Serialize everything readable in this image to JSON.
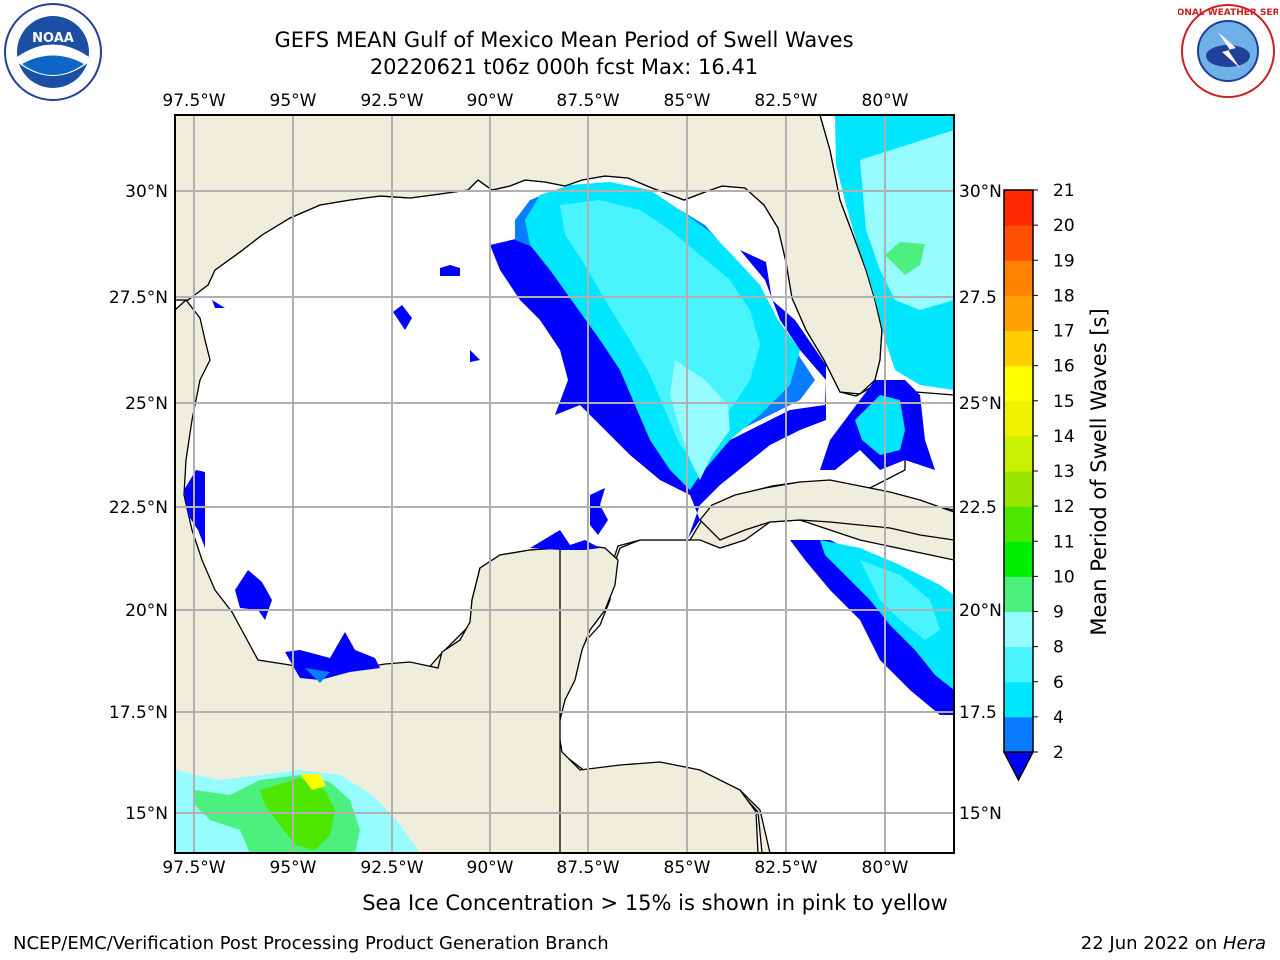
{
  "title_line1": "GEFS MEAN Gulf of Mexico Mean Period of Swell Waves",
  "title_line2": "20220621 t06z 000h fcst   Max: 16.41",
  "lon_labels": [
    "97.5°W",
    "95°W",
    "92.5°W",
    "90°W",
    "87.5°W",
    "85°W",
    "82.5°W",
    "80°W"
  ],
  "lat_labels_left": [
    "30°N",
    "27.5°N",
    "25°N",
    "22.5°N",
    "20°N",
    "17.5°N",
    "15°N"
  ],
  "lat_labels_right": [
    "30°N",
    "27.5",
    "25°N",
    "22.5",
    "20°N",
    "17.5",
    "15°N"
  ],
  "colorbar": {
    "label": "Mean Period of Swell Waves [s]",
    "ticks": [
      "2",
      "4",
      "6",
      "8",
      "9",
      "10",
      "11",
      "12",
      "13",
      "14",
      "15",
      "16",
      "17",
      "18",
      "19",
      "20",
      "21"
    ],
    "colors": [
      "#0000ff",
      "#0a7cff",
      "#00e6ff",
      "#4af4ff",
      "#96fcff",
      "#4bf07e",
      "#00f000",
      "#4ce600",
      "#9be600",
      "#c8f000",
      "#f0f000",
      "#ffff00",
      "#ffcd00",
      "#ffa000",
      "#ff8200",
      "#ff5000",
      "#ff2800",
      "#ff0000"
    ]
  },
  "colors": {
    "land": "#efeddc",
    "water": "#ffffff",
    "grid": "#b0b0b0",
    "coast": "#000000"
  },
  "ice_note": "Sea Ice Concentration > 15% is shown in pink to yellow",
  "credit_left": "NCEP/EMC/Verification Post Processing Product Generation Branch",
  "credit_right_date": "22 Jun 2022 on ",
  "credit_right_host": "Hera",
  "logos": {
    "left": "NOAA",
    "right": "NATIONAL WEATHER SERVICE"
  }
}
